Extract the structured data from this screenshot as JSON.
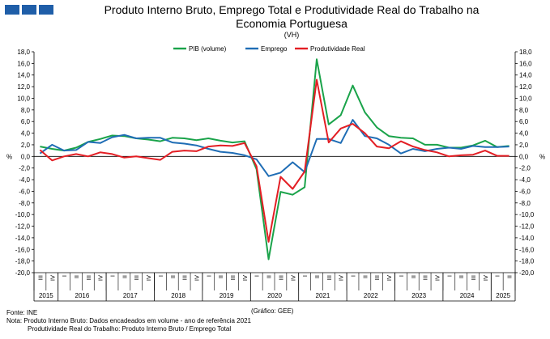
{
  "header": {
    "logo": "ine-logo-icon",
    "title_line1": "Produto Interno Bruto, Emprego Total e Produtividade Real do Trabalho na",
    "title_line2": "Economia Portuguesa",
    "subtitle": "(VH)"
  },
  "chart_data": {
    "type": "line",
    "title": "Produto Interno Bruto, Emprego Total e Produtividade Real do Trabalho na Economia Portuguesa",
    "subtitle": "(VH)",
    "y_left_label": "%",
    "y_right_label": "%",
    "ylim": [
      -20,
      18
    ],
    "ytick_step": 2,
    "quarter_labels": [
      "III",
      "IV",
      "I",
      "II",
      "III",
      "IV",
      "I",
      "II",
      "III",
      "IV",
      "I",
      "II",
      "III",
      "IV",
      "I",
      "II",
      "III",
      "IV",
      "I",
      "II",
      "III",
      "IV",
      "I",
      "II",
      "III",
      "IV",
      "I",
      "II",
      "III",
      "IV",
      "I",
      "II",
      "III",
      "IV",
      "I",
      "II",
      "III",
      "IV",
      "I",
      "II"
    ],
    "year_labels": [
      {
        "label": "2015",
        "start": 0,
        "end": 1
      },
      {
        "label": "2016",
        "start": 2,
        "end": 5
      },
      {
        "label": "2017",
        "start": 6,
        "end": 9
      },
      {
        "label": "2018",
        "start": 10,
        "end": 13
      },
      {
        "label": "2019",
        "start": 14,
        "end": 17
      },
      {
        "label": "2020",
        "start": 18,
        "end": 21
      },
      {
        "label": "2021",
        "start": 22,
        "end": 25
      },
      {
        "label": "2022",
        "start": 26,
        "end": 29
      },
      {
        "label": "2023",
        "start": 30,
        "end": 33
      },
      {
        "label": "2024",
        "start": 34,
        "end": 37
      },
      {
        "label": "2025",
        "start": 38,
        "end": 39
      }
    ],
    "legend_position": "top",
    "series": [
      {
        "name": "PIB (volume)",
        "color": "#1aa34a",
        "values": [
          1.7,
          1.3,
          1.0,
          1.5,
          2.5,
          3.0,
          3.6,
          3.5,
          3.1,
          2.9,
          2.6,
          3.2,
          3.1,
          2.8,
          3.1,
          2.7,
          2.4,
          2.6,
          -2.2,
          -17.7,
          -6.1,
          -6.6,
          -5.3,
          16.7,
          5.5,
          7.1,
          12.2,
          7.6,
          5.0,
          3.5,
          3.2,
          3.1,
          2.0,
          2.0,
          1.5,
          1.5,
          1.9,
          2.7,
          1.6,
          1.8
        ]
      },
      {
        "name": "Emprego",
        "color": "#1f6db5",
        "values": [
          0.5,
          2.0,
          1.0,
          1.1,
          2.5,
          2.3,
          3.3,
          3.7,
          3.1,
          3.2,
          3.2,
          2.4,
          2.2,
          1.9,
          1.3,
          0.8,
          0.6,
          0.2,
          -0.5,
          -3.4,
          -2.8,
          -1.0,
          -2.7,
          3.0,
          3.0,
          2.3,
          6.3,
          3.5,
          3.1,
          2.0,
          0.5,
          1.3,
          0.9,
          1.3,
          1.5,
          1.3,
          1.8,
          1.6,
          1.6,
          1.7
        ]
      },
      {
        "name": "Produtividade Real",
        "color": "#e31e24",
        "values": [
          1.1,
          -0.7,
          0.0,
          0.4,
          0.0,
          0.7,
          0.4,
          -0.2,
          0.0,
          -0.3,
          -0.6,
          0.8,
          1.0,
          0.9,
          1.7,
          1.9,
          1.8,
          2.3,
          -1.7,
          -14.7,
          -3.5,
          -5.6,
          -2.6,
          13.2,
          2.4,
          4.8,
          5.6,
          4.0,
          1.7,
          1.4,
          2.6,
          1.7,
          1.1,
          0.7,
          0.0,
          0.2,
          0.3,
          1.0,
          0.1,
          0.1
        ]
      }
    ]
  },
  "footer": {
    "graphic_source": "(Gráfico: GEE)",
    "source": "Fonte: INE",
    "note_line1": "Nota: Produto Interno Bruto: Dados encadeados em volume - ano de referência 2021",
    "note_line2": "Produtividade Real do Trabalho: Produto Interno Bruto / Emprego Total"
  }
}
